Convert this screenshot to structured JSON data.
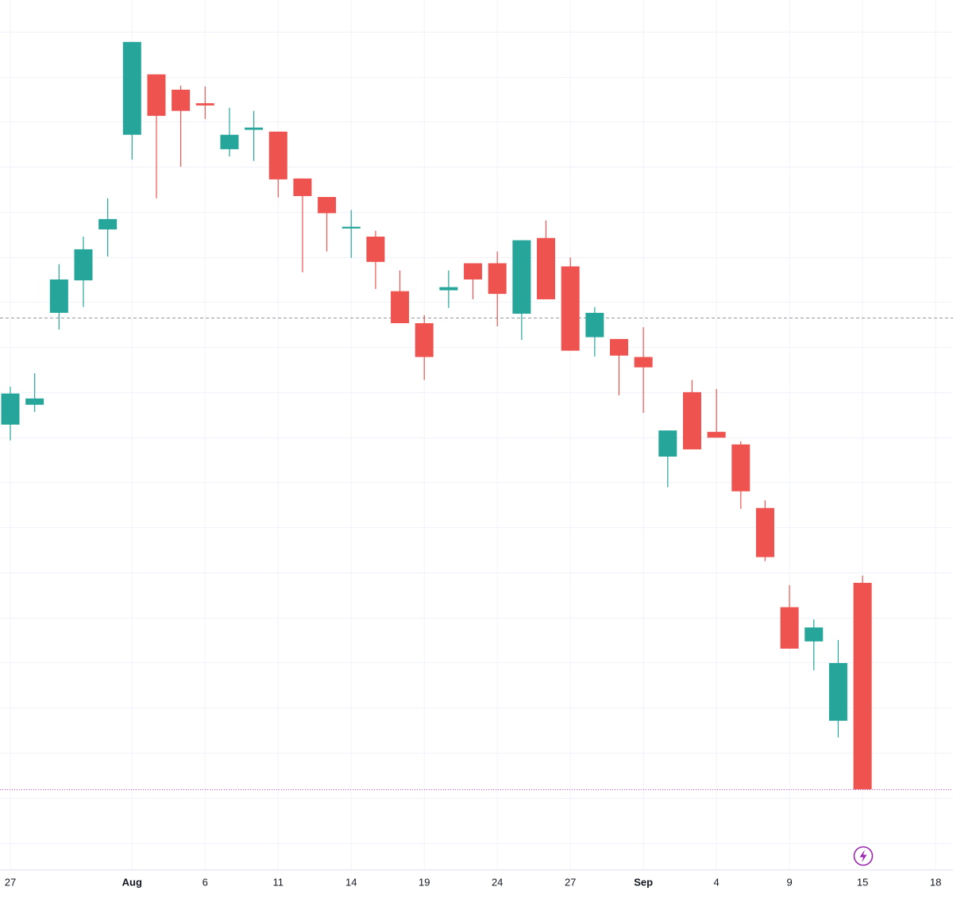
{
  "chart_data": {
    "type": "candlestick",
    "categories": [
      "27",
      null,
      null,
      null,
      null,
      "Aug",
      null,
      null,
      "6",
      null,
      null,
      "11",
      null,
      null,
      "14",
      null,
      null,
      "19",
      null,
      null,
      "24",
      null,
      null,
      "27",
      null,
      null,
      "Sep",
      null,
      null,
      "4",
      null,
      null,
      "9",
      null,
      null,
      "15",
      null,
      null,
      "18"
    ],
    "open": [
      10.28,
      10.72,
      12.76,
      13.48,
      14.61,
      16.71,
      18.05,
      17.71,
      17.41,
      16.39,
      16.82,
      16.78,
      15.74,
      15.33,
      14.63,
      14.45,
      13.24,
      12.53,
      13.26,
      13.86,
      13.86,
      12.74,
      14.42,
      13.79,
      12.22,
      12.18,
      11.78,
      9.57,
      11.0,
      10.12,
      9.84,
      8.43,
      6.23,
      5.47,
      3.71,
      6.77,
      null,
      null,
      null
    ],
    "high": [
      11.12,
      11.42,
      13.84,
      14.45,
      15.3,
      18.77,
      18.05,
      17.8,
      17.78,
      17.31,
      17.24,
      16.78,
      15.74,
      15.33,
      15.04,
      14.58,
      13.7,
      12.71,
      13.7,
      13.86,
      14.12,
      14.37,
      14.81,
      13.99,
      12.89,
      12.18,
      12.44,
      10.15,
      11.27,
      11.07,
      9.91,
      8.6,
      6.72,
      5.96,
      5.5,
      6.93,
      null,
      null,
      null
    ],
    "low": [
      9.93,
      10.56,
      12.39,
      12.89,
      14.01,
      16.16,
      15.3,
      16.0,
      17.06,
      16.23,
      16.13,
      15.32,
      13.66,
      14.12,
      13.98,
      13.29,
      12.53,
      11.27,
      12.87,
      13.06,
      12.46,
      12.16,
      13.06,
      11.92,
      11.79,
      10.93,
      10.54,
      8.89,
      9.73,
      9.99,
      8.41,
      7.25,
      5.31,
      4.83,
      3.34,
      2.19,
      null,
      null,
      null
    ],
    "close": [
      10.97,
      10.86,
      13.5,
      14.17,
      14.84,
      18.77,
      17.13,
      17.24,
      17.36,
      16.71,
      16.87,
      15.72,
      15.35,
      14.97,
      14.67,
      13.89,
      12.53,
      11.78,
      13.33,
      13.5,
      13.18,
      14.37,
      13.06,
      11.92,
      12.76,
      11.81,
      11.55,
      10.15,
      9.73,
      9.99,
      8.8,
      7.34,
      5.31,
      5.78,
      4.99,
      2.19,
      null,
      null,
      null
    ],
    "up_color": "#26a69a",
    "down_color": "#ef5350",
    "ylim": [
      0.41,
      19.7
    ],
    "yticks": [
      1,
      2,
      3,
      4,
      5,
      6,
      7,
      8,
      9,
      10,
      11,
      12,
      13,
      14,
      15,
      16,
      17,
      18,
      19
    ],
    "grid": true,
    "reference_lines": [
      {
        "value": 12.66,
        "color": "#9598a1",
        "style": "dashed"
      },
      {
        "value": 2.19,
        "color": "#e040fb",
        "style": "dotted"
      }
    ]
  }
}
